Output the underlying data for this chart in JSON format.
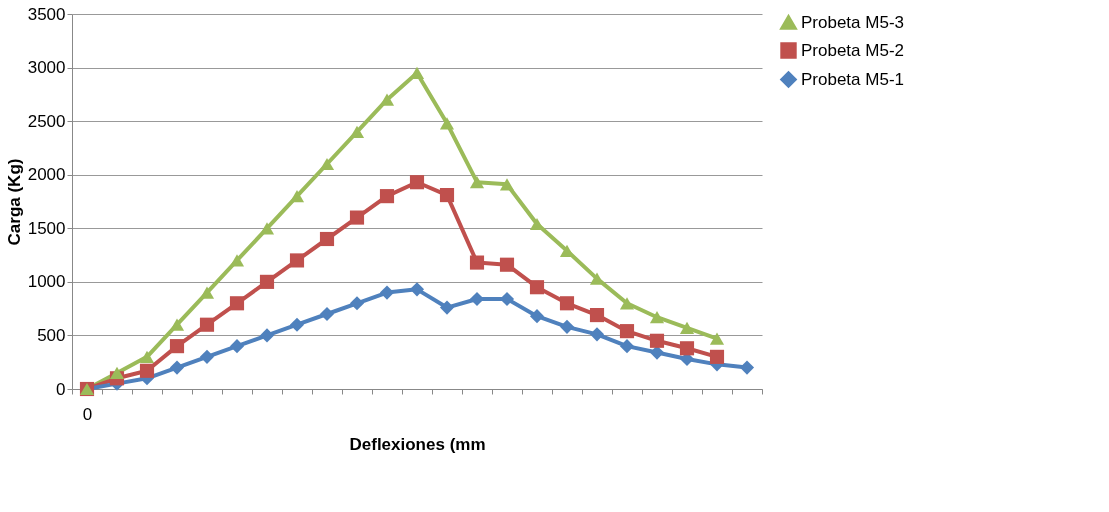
{
  "chart_data": {
    "type": "line",
    "xlabel": "Deflexiones (mm",
    "ylabel": "Carga (Kg)",
    "categories": [
      "0",
      null,
      null,
      null,
      null,
      null,
      null,
      null,
      null,
      null,
      null,
      null,
      null,
      null,
      null,
      null,
      null,
      null,
      null,
      null,
      null,
      null,
      null
    ],
    "ylim": [
      0,
      3500
    ],
    "yticks": [
      0,
      500,
      1000,
      1500,
      2000,
      2500,
      3000,
      3500
    ],
    "grid": "y",
    "legend": "right",
    "line_style": "solid",
    "series": [
      {
        "name": "Probeta M5-3",
        "color": "#9bbb59",
        "marker": "triangle",
        "values": [
          0,
          150,
          300,
          600,
          900,
          1200,
          1500,
          1800,
          2100,
          2400,
          2700,
          2950,
          2480,
          1930,
          1910,
          1540,
          1290,
          1030,
          800,
          670,
          570,
          470,
          null
        ]
      },
      {
        "name": "Probeta M5-2",
        "color": "#c0504d",
        "marker": "square",
        "values": [
          0,
          100,
          170,
          400,
          600,
          800,
          1000,
          1200,
          1400,
          1600,
          1800,
          1930,
          1810,
          1180,
          1160,
          950,
          800,
          690,
          540,
          450,
          380,
          300,
          null
        ]
      },
      {
        "name": "Probeta M5-1",
        "color": "#4f81bd",
        "marker": "diamond",
        "values": [
          0,
          50,
          100,
          200,
          300,
          400,
          500,
          600,
          700,
          800,
          900,
          930,
          760,
          840,
          840,
          680,
          580,
          510,
          400,
          340,
          280,
          230,
          200
        ]
      }
    ]
  }
}
